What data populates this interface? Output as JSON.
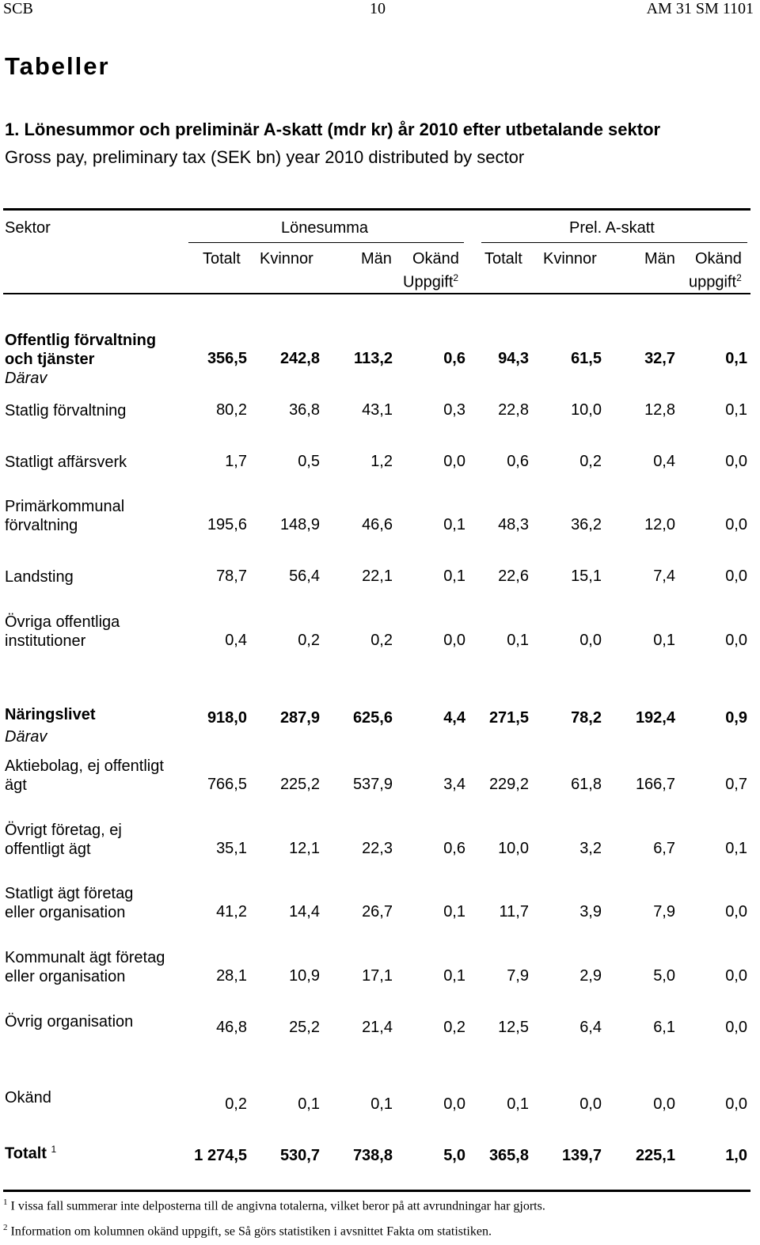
{
  "header": {
    "left": "SCB",
    "center": "10",
    "right": "AM 31 SM 1101"
  },
  "page_title": "Tabeller",
  "table_title": "1. Lönesummor och preliminär A-skatt (mdr kr) år 2010 efter utbetalande sektor",
  "table_subtitle": "Gross pay, preliminary tax (SEK bn) year 2010 distributed by sector",
  "columns": {
    "sector": "Sektor",
    "group_lonesumma": "Lönesumma",
    "group_askatt": "Prel. A-skatt",
    "totalt": "Totalt",
    "kvinnor": "Kvinnor",
    "man": "Män",
    "okand": "Okänd",
    "uppgift_1": "Uppgift",
    "uppgift_2": "uppgift",
    "footnote_mark": "2"
  },
  "rows": {
    "offentlig": {
      "label_1": "Offentlig förvaltning",
      "label_2": "och tjänster",
      "darav": "Därav",
      "values": [
        "356,5",
        "242,8",
        "113,2",
        "0,6",
        "94,3",
        "61,5",
        "32,7",
        "0,1"
      ]
    },
    "statlig": {
      "label_1": "Statlig förvaltning",
      "values": [
        "80,2",
        "36,8",
        "43,1",
        "0,3",
        "22,8",
        "10,0",
        "12,8",
        "0,1"
      ]
    },
    "affarsverk": {
      "label_1": "Statligt affärsverk",
      "values": [
        "1,7",
        "0,5",
        "1,2",
        "0,0",
        "0,6",
        "0,2",
        "0,4",
        "0,0"
      ]
    },
    "primarkommunal": {
      "label_1": "Primärkommunal",
      "label_2": "förvaltning",
      "values": [
        "195,6",
        "148,9",
        "46,6",
        "0,1",
        "48,3",
        "36,2",
        "12,0",
        "0,0"
      ]
    },
    "landsting": {
      "label_1": "Landsting",
      "values": [
        "78,7",
        "56,4",
        "22,1",
        "0,1",
        "22,6",
        "15,1",
        "7,4",
        "0,0"
      ]
    },
    "ovriga_offentliga": {
      "label_1": "Övriga offentliga",
      "label_2": "institutioner",
      "values": [
        "0,4",
        "0,2",
        "0,2",
        "0,0",
        "0,1",
        "0,0",
        "0,1",
        "0,0"
      ]
    },
    "naringslivet": {
      "label_1": "Näringslivet",
      "darav": "Därav",
      "values": [
        "918,0",
        "287,9",
        "625,6",
        "4,4",
        "271,5",
        "78,2",
        "192,4",
        "0,9"
      ]
    },
    "aktiebolag": {
      "label_1": "Aktiebolag, ej offentligt",
      "label_2": "ägt",
      "values": [
        "766,5",
        "225,2",
        "537,9",
        "3,4",
        "229,2",
        "61,8",
        "166,7",
        "0,7"
      ]
    },
    "ovrigt_foretag": {
      "label_1": "Övrigt företag, ej",
      "label_2": "offentligt ägt",
      "values": [
        "35,1",
        "12,1",
        "22,3",
        "0,6",
        "10,0",
        "3,2",
        "6,7",
        "0,1"
      ]
    },
    "statligt_agt": {
      "label_1": "Statligt ägt företag",
      "label_2": "eller organisation",
      "values": [
        "41,2",
        "14,4",
        "26,7",
        "0,1",
        "11,7",
        "3,9",
        "7,9",
        "0,0"
      ]
    },
    "kommunalt_agt": {
      "label_1": "Kommunalt ägt företag",
      "label_2": "eller organisation",
      "values": [
        "28,1",
        "10,9",
        "17,1",
        "0,1",
        "7,9",
        "2,9",
        "5,0",
        "0,0"
      ]
    },
    "ovrig_org": {
      "label_1": "Övrig organisation",
      "values": [
        "46,8",
        "25,2",
        "21,4",
        "0,2",
        "12,5",
        "6,4",
        "6,1",
        "0,0"
      ]
    },
    "okand": {
      "label_1": "Okänd",
      "values": [
        "0,2",
        "0,1",
        "0,1",
        "0,0",
        "0,1",
        "0,0",
        "0,0",
        "0,0"
      ]
    },
    "totalt": {
      "label_1": "Totalt",
      "footnote_mark": "1",
      "values": [
        "1 274,5",
        "530,7",
        "738,8",
        "5,0",
        "365,8",
        "139,7",
        "225,1",
        "1,0"
      ]
    }
  },
  "footnotes": [
    {
      "mark": "1",
      "text": "I vissa fall summerar inte delposterna till de angivna totalerna, vilket beror på att avrundningar har gjorts."
    },
    {
      "mark": "2",
      "text": "Information om kolumnen okänd uppgift, se Så görs statistiken i avsnittet Fakta om statistiken."
    }
  ]
}
